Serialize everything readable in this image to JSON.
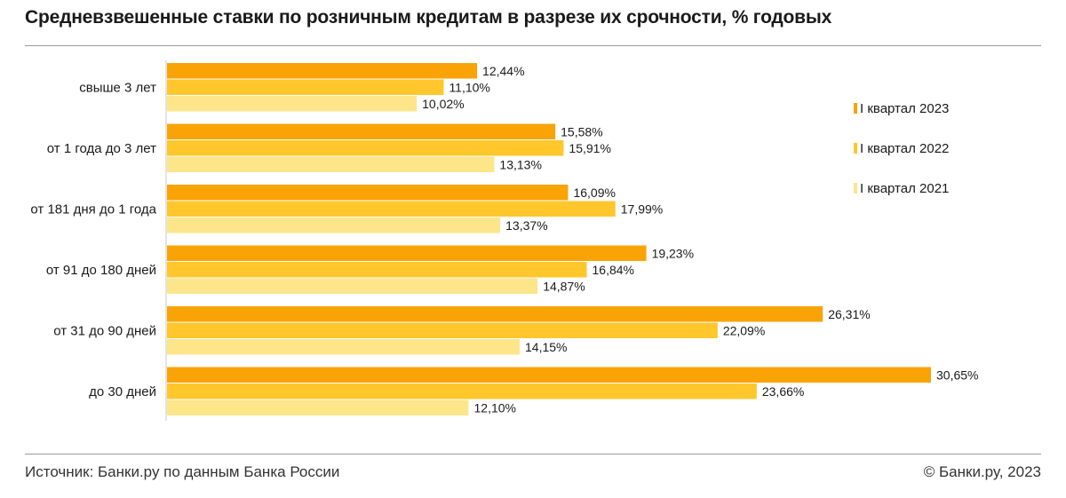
{
  "title": "Средневзвешенные ставки по розничным кредитам в разрезе их срочности, % годовых",
  "source": "Источник: Банки.ру по данным Банка России",
  "copyright": "© Банки.ру, 2023",
  "chart_data": {
    "type": "bar",
    "orientation": "horizontal",
    "title": "Средневзвешенные ставки по розничным кредитам в разрезе их срочности, % годовых",
    "categories": [
      "свыше 3 лет",
      "от 1 года до 3 лет",
      "от 181 дня до 1 года",
      "от 91 до 180 дней",
      "от 31 до 90 дней",
      "до 30 дней"
    ],
    "series": [
      {
        "name": "I квартал 2023",
        "color": "#FAA307",
        "values": [
          12.44,
          15.58,
          16.09,
          19.23,
          26.31,
          30.65
        ],
        "labels": [
          "12,44%",
          "15,58%",
          "16,09%",
          "19,23%",
          "26,31%",
          "30,65%"
        ]
      },
      {
        "name": "I квартал 2022",
        "color": "#FFC72C",
        "values": [
          11.1,
          15.91,
          17.99,
          16.84,
          22.09,
          23.66
        ],
        "labels": [
          "11,10%",
          "15,91%",
          "17,99%",
          "16,84%",
          "22,09%",
          "23,66%"
        ]
      },
      {
        "name": "I квартал 2021",
        "color": "#FDE68A",
        "values": [
          10.02,
          13.13,
          13.37,
          14.87,
          14.15,
          12.1
        ],
        "labels": [
          "10,02%",
          "13,13%",
          "13,37%",
          "14,87%",
          "14,15%",
          "12,10%"
        ]
      }
    ],
    "xlim": [
      0,
      32
    ],
    "xlabel": "",
    "ylabel": "",
    "grid": false,
    "legend_position": "right"
  }
}
